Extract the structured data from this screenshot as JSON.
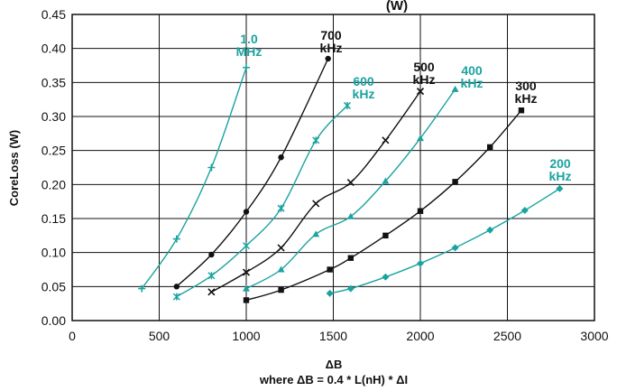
{
  "chart_data": {
    "type": "line",
    "title_fragment": "(W)",
    "xlabel": "ΔB",
    "xlabel_sub": "where ΔB = 0.4 * L(nH) * ΔI",
    "ylabel": "CoreLoss (W)",
    "xlim": [
      0,
      3000
    ],
    "ylim": [
      0,
      0.45
    ],
    "xticks": [
      0,
      500,
      1000,
      1500,
      2000,
      2500,
      3000
    ],
    "yticks": [
      "0.00",
      "0.05",
      "0.10",
      "0.15",
      "0.20",
      "0.25",
      "0.30",
      "0.35",
      "0.40",
      "0.45"
    ],
    "grid": true,
    "legend": "none (inline labels)",
    "colors": {
      "teal": "#1aa3a0",
      "black": "#111111"
    },
    "series": [
      {
        "name": "1.0 MHz",
        "label_lines": [
          "1.0",
          "MHz"
        ],
        "color": "teal",
        "marker": "plus",
        "x": [
          400,
          600,
          800,
          1000
        ],
        "y": [
          0.047,
          0.12,
          0.225,
          0.372
        ]
      },
      {
        "name": "700 kHz",
        "label_lines": [
          "700",
          "kHz"
        ],
        "color": "black",
        "marker": "circle",
        "x": [
          600,
          800,
          1000,
          1200,
          1470
        ],
        "y": [
          0.05,
          0.097,
          0.16,
          0.24,
          0.385
        ]
      },
      {
        "name": "600 kHz",
        "label_lines": [
          "600",
          "kHz"
        ],
        "color": "teal",
        "marker": "star",
        "x": [
          600,
          800,
          1000,
          1200,
          1400,
          1580
        ],
        "y": [
          0.035,
          0.066,
          0.11,
          0.165,
          0.265,
          0.316
        ]
      },
      {
        "name": "500 kHz",
        "label_lines": [
          "500",
          "kHz"
        ],
        "color": "black",
        "marker": "x",
        "x": [
          800,
          1000,
          1200,
          1400,
          1600,
          1800,
          2000
        ],
        "y": [
          0.042,
          0.071,
          0.107,
          0.172,
          0.203,
          0.265,
          0.337
        ]
      },
      {
        "name": "400 kHz",
        "label_lines": [
          "400",
          "kHz"
        ],
        "color": "teal",
        "marker": "triangle",
        "x": [
          1000,
          1200,
          1400,
          1600,
          1800,
          2000,
          2200
        ],
        "y": [
          0.047,
          0.075,
          0.127,
          0.153,
          0.205,
          0.268,
          0.34
        ]
      },
      {
        "name": "300 kHz",
        "label_lines": [
          "300",
          "kHz"
        ],
        "color": "black",
        "marker": "square",
        "x": [
          1000,
          1200,
          1480,
          1600,
          1800,
          2000,
          2200,
          2400,
          2580
        ],
        "y": [
          0.03,
          0.045,
          0.075,
          0.092,
          0.125,
          0.161,
          0.204,
          0.255,
          0.309
        ]
      },
      {
        "name": "200 kHz",
        "label_lines": [
          "200",
          "kHz"
        ],
        "color": "teal",
        "marker": "diamond",
        "x": [
          1480,
          1600,
          1800,
          2000,
          2200,
          2400,
          2600,
          2800
        ],
        "y": [
          0.04,
          0.047,
          0.064,
          0.084,
          0.107,
          0.133,
          0.162,
          0.194
        ]
      }
    ]
  }
}
